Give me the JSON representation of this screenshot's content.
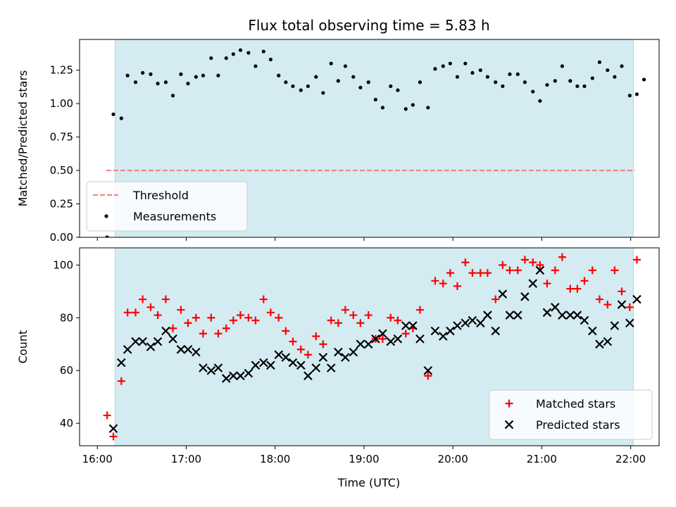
{
  "chart_data": {
    "type": "scatter",
    "title": "Flux total observing time = 5.83 h",
    "xlabel": "Time (UTC)",
    "x_ticks": [
      "16:00",
      "17:00",
      "18:00",
      "19:00",
      "20:00",
      "21:00",
      "22:00"
    ],
    "xlim_hours": [
      15.8,
      22.32
    ],
    "observing_window_hours": [
      16.2,
      22.03
    ],
    "colors": {
      "window": "#add8e6",
      "threshold": "#f08080",
      "measurements": "#000000",
      "matched": "#ff0000",
      "predicted": "#000000"
    },
    "panels": [
      {
        "ylabel": "Matched/Predicted stars",
        "ylim": [
          0,
          1.48
        ],
        "y_ticks": [
          "0.00",
          "0.25",
          "0.50",
          "0.75",
          "1.00",
          "1.25"
        ],
        "threshold": {
          "name": "Threshold",
          "y": 0.5,
          "x_range_hours": [
            16.1,
            22.05
          ]
        },
        "legend": {
          "position": "lower-left",
          "entries": [
            {
              "label": "Threshold",
              "marker": "dashed-line",
              "color": "#f08080"
            },
            {
              "label": "Measurements",
              "marker": "dot",
              "color": "#000000"
            }
          ]
        },
        "series": [
          {
            "name": "Measurements",
            "marker": "dot",
            "points": [
              [
                16.11,
                0.0
              ],
              [
                16.18,
                0.92
              ],
              [
                16.27,
                0.89
              ],
              [
                16.34,
                1.21
              ],
              [
                16.43,
                1.16
              ],
              [
                16.51,
                1.23
              ],
              [
                16.6,
                1.22
              ],
              [
                16.68,
                1.15
              ],
              [
                16.77,
                1.16
              ],
              [
                16.85,
                1.06
              ],
              [
                16.94,
                1.22
              ],
              [
                17.02,
                1.15
              ],
              [
                17.11,
                1.2
              ],
              [
                17.19,
                1.21
              ],
              [
                17.28,
                1.34
              ],
              [
                17.36,
                1.21
              ],
              [
                17.45,
                1.34
              ],
              [
                17.53,
                1.37
              ],
              [
                17.61,
                1.4
              ],
              [
                17.7,
                1.38
              ],
              [
                17.78,
                1.28
              ],
              [
                17.87,
                1.39
              ],
              [
                17.95,
                1.33
              ],
              [
                18.04,
                1.21
              ],
              [
                18.12,
                1.16
              ],
              [
                18.2,
                1.13
              ],
              [
                18.29,
                1.1
              ],
              [
                18.37,
                1.13
              ],
              [
                18.46,
                1.2
              ],
              [
                18.54,
                1.08
              ],
              [
                18.63,
                1.3
              ],
              [
                18.71,
                1.17
              ],
              [
                18.79,
                1.28
              ],
              [
                18.88,
                1.2
              ],
              [
                18.96,
                1.12
              ],
              [
                19.05,
                1.16
              ],
              [
                19.13,
                1.03
              ],
              [
                19.21,
                0.97
              ],
              [
                19.3,
                1.13
              ],
              [
                19.38,
                1.1
              ],
              [
                19.47,
                0.96
              ],
              [
                19.55,
                0.99
              ],
              [
                19.63,
                1.16
              ],
              [
                19.72,
                0.97
              ],
              [
                19.8,
                1.26
              ],
              [
                19.89,
                1.28
              ],
              [
                19.97,
                1.3
              ],
              [
                20.05,
                1.2
              ],
              [
                20.14,
                1.3
              ],
              [
                20.22,
                1.23
              ],
              [
                20.31,
                1.25
              ],
              [
                20.39,
                1.2
              ],
              [
                20.48,
                1.16
              ],
              [
                20.56,
                1.13
              ],
              [
                20.64,
                1.22
              ],
              [
                20.73,
                1.22
              ],
              [
                20.81,
                1.16
              ],
              [
                20.9,
                1.09
              ],
              [
                20.98,
                1.02
              ],
              [
                21.06,
                1.14
              ],
              [
                21.15,
                1.17
              ],
              [
                21.23,
                1.28
              ],
              [
                21.32,
                1.17
              ],
              [
                21.4,
                1.13
              ],
              [
                21.48,
                1.13
              ],
              [
                21.57,
                1.19
              ],
              [
                21.65,
                1.31
              ],
              [
                21.74,
                1.25
              ],
              [
                21.82,
                1.2
              ],
              [
                21.9,
                1.28
              ],
              [
                21.99,
                1.06
              ],
              [
                22.07,
                1.07
              ],
              [
                22.15,
                1.18
              ]
            ]
          }
        ]
      },
      {
        "ylabel": "Count",
        "ylim": [
          31.5,
          106.5
        ],
        "y_ticks": [
          "40",
          "60",
          "80",
          "100"
        ],
        "legend": {
          "position": "lower-right",
          "entries": [
            {
              "label": "Matched stars",
              "marker": "plus",
              "color": "#ff0000"
            },
            {
              "label": "Predicted stars",
              "marker": "x",
              "color": "#000000"
            }
          ]
        },
        "series": [
          {
            "name": "Matched stars",
            "marker": "plus",
            "points": [
              [
                16.11,
                43
              ],
              [
                16.18,
                35
              ],
              [
                16.27,
                56
              ],
              [
                16.34,
                82
              ],
              [
                16.43,
                82
              ],
              [
                16.51,
                87
              ],
              [
                16.6,
                84
              ],
              [
                16.68,
                81
              ],
              [
                16.77,
                87
              ],
              [
                16.85,
                76
              ],
              [
                16.94,
                83
              ],
              [
                17.02,
                78
              ],
              [
                17.11,
                80
              ],
              [
                17.19,
                74
              ],
              [
                17.28,
                80
              ],
              [
                17.36,
                74
              ],
              [
                17.45,
                76
              ],
              [
                17.53,
                79
              ],
              [
                17.61,
                81
              ],
              [
                17.7,
                80
              ],
              [
                17.78,
                79
              ],
              [
                17.87,
                87
              ],
              [
                17.95,
                82
              ],
              [
                18.04,
                80
              ],
              [
                18.12,
                75
              ],
              [
                18.2,
                71
              ],
              [
                18.29,
                68
              ],
              [
                18.37,
                66
              ],
              [
                18.46,
                73
              ],
              [
                18.54,
                70
              ],
              [
                18.63,
                79
              ],
              [
                18.71,
                78
              ],
              [
                18.79,
                83
              ],
              [
                18.88,
                81
              ],
              [
                18.96,
                78
              ],
              [
                19.05,
                81
              ],
              [
                19.13,
                72
              ],
              [
                19.21,
                72
              ],
              [
                19.3,
                80
              ],
              [
                19.38,
                79
              ],
              [
                19.47,
                74
              ],
              [
                19.55,
                76
              ],
              [
                19.63,
                83
              ],
              [
                19.72,
                58
              ],
              [
                19.8,
                94
              ],
              [
                19.89,
                93
              ],
              [
                19.97,
                97
              ],
              [
                20.05,
                92
              ],
              [
                20.14,
                101
              ],
              [
                20.22,
                97
              ],
              [
                20.31,
                97
              ],
              [
                20.39,
                97
              ],
              [
                20.48,
                87
              ],
              [
                20.56,
                100
              ],
              [
                20.64,
                98
              ],
              [
                20.73,
                98
              ],
              [
                20.81,
                102
              ],
              [
                20.9,
                101
              ],
              [
                20.98,
                100
              ],
              [
                21.06,
                93
              ],
              [
                21.15,
                98
              ],
              [
                21.23,
                103
              ],
              [
                21.32,
                91
              ],
              [
                21.4,
                91
              ],
              [
                21.48,
                94
              ],
              [
                21.57,
                98
              ],
              [
                21.65,
                87
              ],
              [
                21.74,
                85
              ],
              [
                21.82,
                98
              ],
              [
                21.9,
                90
              ],
              [
                21.99,
                84
              ],
              [
                22.07,
                102
              ]
            ]
          },
          {
            "name": "Predicted stars",
            "marker": "x",
            "points": [
              [
                16.18,
                38
              ],
              [
                16.27,
                63
              ],
              [
                16.34,
                68
              ],
              [
                16.43,
                71
              ],
              [
                16.51,
                71
              ],
              [
                16.6,
                69
              ],
              [
                16.68,
                71
              ],
              [
                16.77,
                75
              ],
              [
                16.85,
                72
              ],
              [
                16.94,
                68
              ],
              [
                17.02,
                68
              ],
              [
                17.11,
                67
              ],
              [
                17.19,
                61
              ],
              [
                17.28,
                60
              ],
              [
                17.36,
                61
              ],
              [
                17.45,
                57
              ],
              [
                17.53,
                58
              ],
              [
                17.61,
                58
              ],
              [
                17.7,
                59
              ],
              [
                17.78,
                62
              ],
              [
                17.87,
                63
              ],
              [
                17.95,
                62
              ],
              [
                18.04,
                66
              ],
              [
                18.12,
                65
              ],
              [
                18.2,
                63
              ],
              [
                18.29,
                62
              ],
              [
                18.37,
                58
              ],
              [
                18.46,
                61
              ],
              [
                18.54,
                65
              ],
              [
                18.63,
                61
              ],
              [
                18.71,
                67
              ],
              [
                18.79,
                65
              ],
              [
                18.88,
                67
              ],
              [
                18.96,
                70
              ],
              [
                19.05,
                70
              ],
              [
                19.13,
                72
              ],
              [
                19.21,
                74
              ],
              [
                19.3,
                71
              ],
              [
                19.38,
                72
              ],
              [
                19.47,
                77
              ],
              [
                19.55,
                77
              ],
              [
                19.63,
                72
              ],
              [
                19.72,
                60
              ],
              [
                19.8,
                75
              ],
              [
                19.89,
                73
              ],
              [
                19.97,
                75
              ],
              [
                20.05,
                77
              ],
              [
                20.14,
                78
              ],
              [
                20.22,
                79
              ],
              [
                20.31,
                78
              ],
              [
                20.39,
                81
              ],
              [
                20.48,
                75
              ],
              [
                20.56,
                89
              ],
              [
                20.64,
                81
              ],
              [
                20.73,
                81
              ],
              [
                20.81,
                88
              ],
              [
                20.9,
                93
              ],
              [
                20.98,
                98
              ],
              [
                21.06,
                82
              ],
              [
                21.15,
                84
              ],
              [
                21.23,
                81
              ],
              [
                21.32,
                81
              ],
              [
                21.4,
                81
              ],
              [
                21.48,
                79
              ],
              [
                21.57,
                75
              ],
              [
                21.65,
                70
              ],
              [
                21.74,
                71
              ],
              [
                21.82,
                77
              ],
              [
                21.9,
                85
              ],
              [
                21.99,
                78
              ],
              [
                22.07,
                87
              ]
            ]
          }
        ]
      }
    ]
  }
}
